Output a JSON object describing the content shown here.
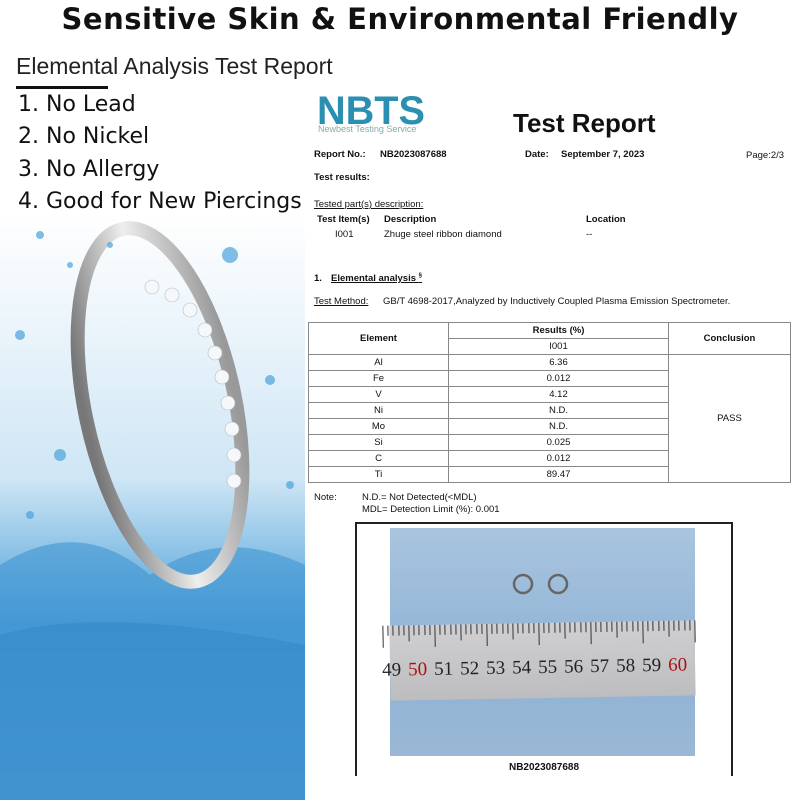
{
  "header": {
    "title": "Sensitive Skin & Environmental Friendly",
    "subtitle": "Elemental Analysis Test Report"
  },
  "features": [
    "1. No Lead",
    "2. No Nickel",
    "3. No Allergy",
    "4. Good for New Piercings"
  ],
  "report": {
    "logo_text": "NBTS",
    "logo_subtitle": "Newbest Testing Service",
    "logo_color": "#2a8fb0",
    "title": "Test Report",
    "report_no_label": "Report No.:",
    "report_no": "NB2023087688",
    "date_label": "Date:",
    "date": "September 7, 2023",
    "page": "Page:2/3",
    "test_results_label": "Test results:",
    "tested_parts_label": "Tested part(s) description:",
    "parts_headers": [
      "Test Item(s)",
      "Description",
      "Location"
    ],
    "parts_row": [
      "I001",
      "Zhuge steel ribbon diamond",
      "--"
    ],
    "section": "1.",
    "section_title": "Elemental analysis",
    "section_mark": "§",
    "method_label": "Test Method:",
    "method": "GB/T 4698-2017,Analyzed by Inductively Coupled Plasma Emission Spectrometer.",
    "table": {
      "h_element": "Element",
      "h_results": "Results (%)",
      "h_item": "I001",
      "h_conclusion": "Conclusion",
      "conclusion": "PASS",
      "rows": [
        [
          "Al",
          "6.36"
        ],
        [
          "Fe",
          "0.012"
        ],
        [
          "V",
          "4.12"
        ],
        [
          "Ni",
          "N.D."
        ],
        [
          "Mo",
          "N.D."
        ],
        [
          "Si",
          "0.025"
        ],
        [
          "C",
          "0.012"
        ],
        [
          "Ti",
          "89.47"
        ]
      ]
    },
    "note_label": "Note:",
    "note_1": "N.D.= Not Detected(<MDL)",
    "note_2": "MDL= Detection Limit (%): 0.001",
    "photo_caption": "NB2023087688",
    "ruler_numbers": [
      "49",
      "50",
      "51",
      "52",
      "53",
      "54",
      "55",
      "56",
      "57",
      "58",
      "59",
      "60"
    ]
  }
}
